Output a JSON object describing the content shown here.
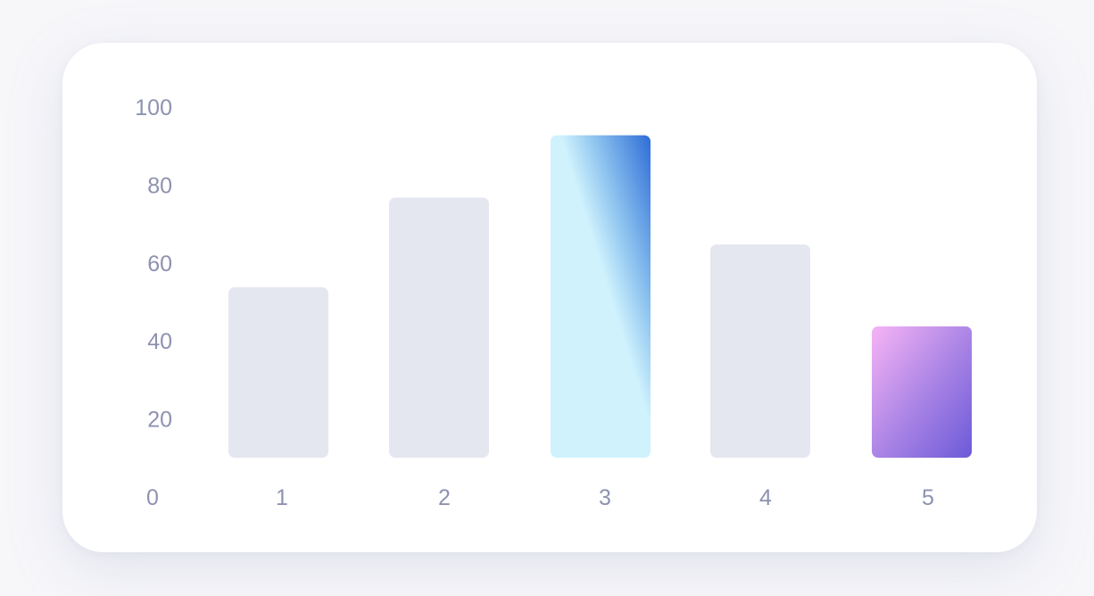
{
  "chart_data": {
    "type": "bar",
    "categories": [
      "1",
      "2",
      "3",
      "4",
      "5"
    ],
    "values": [
      54,
      77,
      93,
      65,
      44
    ],
    "ylim": [
      0,
      100
    ],
    "y_ticks": [
      "0",
      "20",
      "40",
      "60",
      "80",
      "100"
    ],
    "grid": false,
    "legend": "none",
    "colors": {
      "default_bar": "#e5e7f0",
      "highlight_bar_3": [
        "#cff2fd",
        "#2e6cd6"
      ],
      "highlight_bar_5": [
        "#f7b4f5",
        "#6c5ad8"
      ],
      "tick_label": "#8e92b0",
      "background": "#f7f7fa",
      "card": "#ffffff"
    }
  }
}
